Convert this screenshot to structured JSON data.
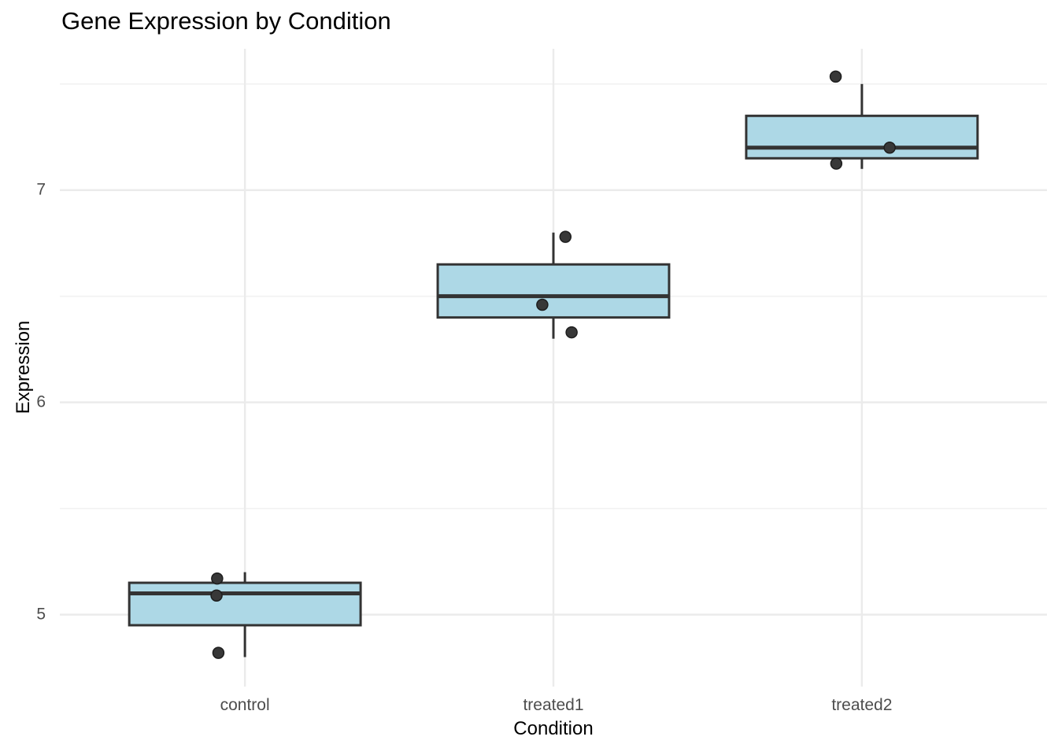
{
  "chart_data": {
    "type": "boxplot",
    "title": "Gene Expression by Condition",
    "xlabel": "Condition",
    "ylabel": "Expression",
    "categories": [
      "control",
      "treated1",
      "treated2"
    ],
    "series_values": {
      "control": [
        4.8,
        5.1,
        5.2
      ],
      "treated1": [
        6.3,
        6.5,
        6.8
      ],
      "treated2": [
        7.1,
        7.2,
        7.5
      ]
    },
    "boxes": [
      {
        "category": "control",
        "whisker_low": 4.8,
        "q1": 4.95,
        "median": 5.1,
        "q3": 5.15,
        "whisker_high": 5.2
      },
      {
        "category": "treated1",
        "whisker_low": 6.3,
        "q1": 6.4,
        "median": 6.5,
        "q3": 6.65,
        "whisker_high": 6.8
      },
      {
        "category": "treated2",
        "whisker_low": 7.1,
        "q1": 7.15,
        "median": 7.2,
        "q3": 7.35,
        "whisker_high": 7.5
      }
    ],
    "jitter_points": [
      {
        "category": "control",
        "dx": -0.09,
        "y": 5.17
      },
      {
        "category": "control",
        "dx": -0.092,
        "y": 5.09
      },
      {
        "category": "control",
        "dx": -0.086,
        "y": 4.82
      },
      {
        "category": "treated1",
        "dx": 0.039,
        "y": 6.78
      },
      {
        "category": "treated1",
        "dx": -0.036,
        "y": 6.46
      },
      {
        "category": "treated1",
        "dx": 0.059,
        "y": 6.33
      },
      {
        "category": "treated2",
        "dx": -0.085,
        "y": 7.535
      },
      {
        "category": "treated2",
        "dx": 0.09,
        "y": 7.2
      },
      {
        "category": "treated2",
        "dx": -0.083,
        "y": 7.125
      }
    ],
    "y_ticks": [
      "5",
      "6",
      "7"
    ],
    "y_tick_values": [
      5,
      6,
      7
    ],
    "y_minor_tick_values": [
      5.5,
      6.5,
      7.5
    ],
    "ylim": [
      4.661,
      7.666
    ],
    "grid": "horizontal major and minor, vertical major at each category",
    "legend_position": "none",
    "colors": {
      "background": "#FFFFFF",
      "box_fill": "#ADD8E6",
      "box_stroke": "#333333",
      "median_stroke": "#333333",
      "whisker_stroke": "#333333",
      "point_fill": "#383838",
      "point_stroke": "#1E1E1E",
      "grid_major": "#EBEBEB",
      "grid_minor": "#F2F2F2",
      "tick_label_color": "#4D4D4D",
      "title_color": "#000000",
      "axis_title_color": "#000000"
    }
  }
}
